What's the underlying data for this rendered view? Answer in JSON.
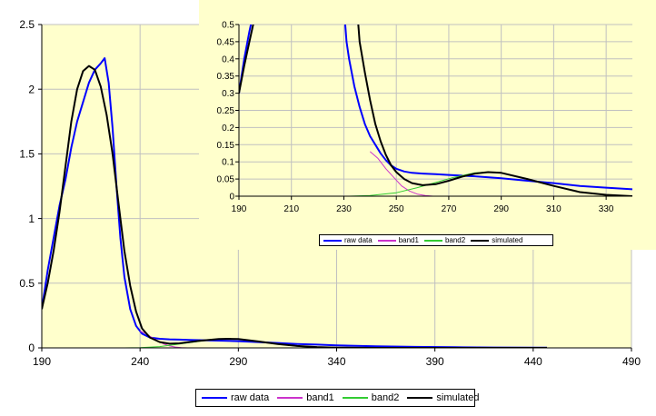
{
  "colors": {
    "background": "#ffffff",
    "plot_area": "#ffffcc",
    "grid": "#c0c0c0",
    "raw_data": "#0000ff",
    "band1": "#cc33cc",
    "band2": "#33cc33",
    "simulated": "#000000"
  },
  "chart_data": [
    {
      "id": "main",
      "type": "line",
      "title": "",
      "xlabel": "",
      "ylabel": "",
      "xlim": [
        190,
        490
      ],
      "ylim": [
        0,
        2.5
      ],
      "x_ticks": [
        "190",
        "240",
        "290",
        "340",
        "390",
        "440",
        "490"
      ],
      "y_ticks": [
        "0",
        "0.5",
        "1",
        "1.5",
        "2",
        "2.5"
      ],
      "grid": true,
      "legend": "bottom",
      "series": [
        {
          "name": "raw data",
          "color": "#0000ff",
          "x": [
            190,
            193,
            196,
            199,
            202,
            205,
            208,
            211,
            214,
            217,
            220,
            222,
            224,
            226,
            228,
            230,
            232,
            235,
            238,
            241,
            245,
            250,
            255,
            260,
            265,
            270,
            280,
            290,
            300,
            310,
            320,
            330,
            340,
            360,
            380,
            400,
            420,
            440,
            447
          ],
          "y": [
            0.3,
            0.6,
            0.85,
            1.1,
            1.3,
            1.55,
            1.75,
            1.9,
            2.05,
            2.15,
            2.2,
            2.24,
            2.05,
            1.7,
            1.25,
            0.85,
            0.55,
            0.3,
            0.17,
            0.11,
            0.08,
            0.07,
            0.066,
            0.064,
            0.062,
            0.06,
            0.056,
            0.052,
            0.045,
            0.038,
            0.03,
            0.025,
            0.02,
            0.012,
            0.008,
            0.005,
            0.003,
            0.002,
            0.002
          ]
        },
        {
          "name": "band1",
          "color": "#cc33cc",
          "x": [
            240,
            243,
            246,
            249,
            252,
            255,
            258,
            261,
            264
          ],
          "y": [
            0.13,
            0.11,
            0.08,
            0.055,
            0.03,
            0.015,
            0.006,
            0.002,
            0.0
          ]
        },
        {
          "name": "band2",
          "color": "#33cc33",
          "x": [
            232,
            240,
            250,
            258,
            265,
            272,
            280,
            285,
            290,
            300,
            310,
            320,
            330
          ],
          "y": [
            0.0,
            0.002,
            0.01,
            0.025,
            0.04,
            0.055,
            0.068,
            0.07,
            0.068,
            0.05,
            0.03,
            0.012,
            0.003
          ]
        },
        {
          "name": "simulated",
          "color": "#000000",
          "x": [
            190,
            193,
            196,
            199,
            202,
            205,
            208,
            211,
            214,
            217,
            220,
            223,
            226,
            229,
            232,
            235,
            238,
            241,
            245,
            250,
            255,
            260,
            265,
            270,
            280,
            285,
            290,
            300,
            310,
            320,
            330,
            340,
            360,
            380,
            400,
            420,
            440,
            447
          ],
          "y": [
            0.3,
            0.5,
            0.75,
            1.05,
            1.4,
            1.75,
            2.0,
            2.14,
            2.18,
            2.15,
            2.02,
            1.8,
            1.5,
            1.12,
            0.75,
            0.48,
            0.28,
            0.15,
            0.08,
            0.045,
            0.032,
            0.035,
            0.045,
            0.055,
            0.068,
            0.07,
            0.068,
            0.05,
            0.03,
            0.015,
            0.006,
            0.002,
            0.0,
            0.0,
            0.0,
            0.0,
            0.0,
            0.0
          ]
        }
      ]
    },
    {
      "id": "inset",
      "type": "line",
      "title": "",
      "xlabel": "",
      "ylabel": "",
      "xlim": [
        190,
        340
      ],
      "ylim": [
        0,
        0.5
      ],
      "x_ticks": [
        "190",
        "210",
        "230",
        "250",
        "270",
        "290",
        "310",
        "330"
      ],
      "y_ticks": [
        "0",
        "0.05",
        "0.1",
        "0.15",
        "0.2",
        "0.25",
        "0.3",
        "0.35",
        "0.4",
        "0.45",
        "0.5"
      ],
      "grid": true,
      "legend": "bottom",
      "series": [
        {
          "name": "raw data",
          "color": "#0000ff",
          "x": [
            190,
            192,
            194,
            196,
            230,
            231,
            232,
            234,
            236,
            238,
            240,
            242,
            244,
            246,
            248,
            250,
            253,
            256,
            260,
            265,
            270,
            280,
            290,
            300,
            310,
            320,
            330,
            340
          ],
          "y": [
            0.3,
            0.4,
            0.48,
            0.55,
            0.55,
            0.45,
            0.4,
            0.32,
            0.26,
            0.21,
            0.175,
            0.15,
            0.125,
            0.105,
            0.09,
            0.08,
            0.072,
            0.068,
            0.066,
            0.064,
            0.062,
            0.058,
            0.052,
            0.045,
            0.038,
            0.03,
            0.025,
            0.02
          ]
        },
        {
          "name": "band1",
          "color": "#cc33cc",
          "x": [
            240,
            243,
            246,
            249,
            252,
            255,
            258,
            261,
            264
          ],
          "y": [
            0.13,
            0.11,
            0.08,
            0.055,
            0.03,
            0.015,
            0.006,
            0.002,
            0.0
          ]
        },
        {
          "name": "band2",
          "color": "#33cc33",
          "x": [
            232,
            240,
            250,
            258,
            265,
            272,
            280,
            285,
            290,
            300,
            310,
            320,
            330
          ],
          "y": [
            0.0,
            0.002,
            0.01,
            0.025,
            0.04,
            0.055,
            0.068,
            0.07,
            0.068,
            0.05,
            0.03,
            0.012,
            0.003
          ]
        },
        {
          "name": "simulated",
          "color": "#000000",
          "x": [
            190,
            192,
            194,
            196,
            198,
            235,
            236,
            238,
            240,
            242,
            244,
            246,
            248,
            250,
            253,
            256,
            260,
            265,
            270,
            275,
            280,
            285,
            290,
            300,
            310,
            320,
            330,
            340
          ],
          "y": [
            0.3,
            0.38,
            0.45,
            0.52,
            0.55,
            0.55,
            0.45,
            0.36,
            0.28,
            0.21,
            0.16,
            0.12,
            0.09,
            0.07,
            0.05,
            0.038,
            0.032,
            0.035,
            0.045,
            0.057,
            0.066,
            0.07,
            0.068,
            0.05,
            0.03,
            0.012,
            0.004,
            0.0
          ]
        }
      ]
    }
  ]
}
